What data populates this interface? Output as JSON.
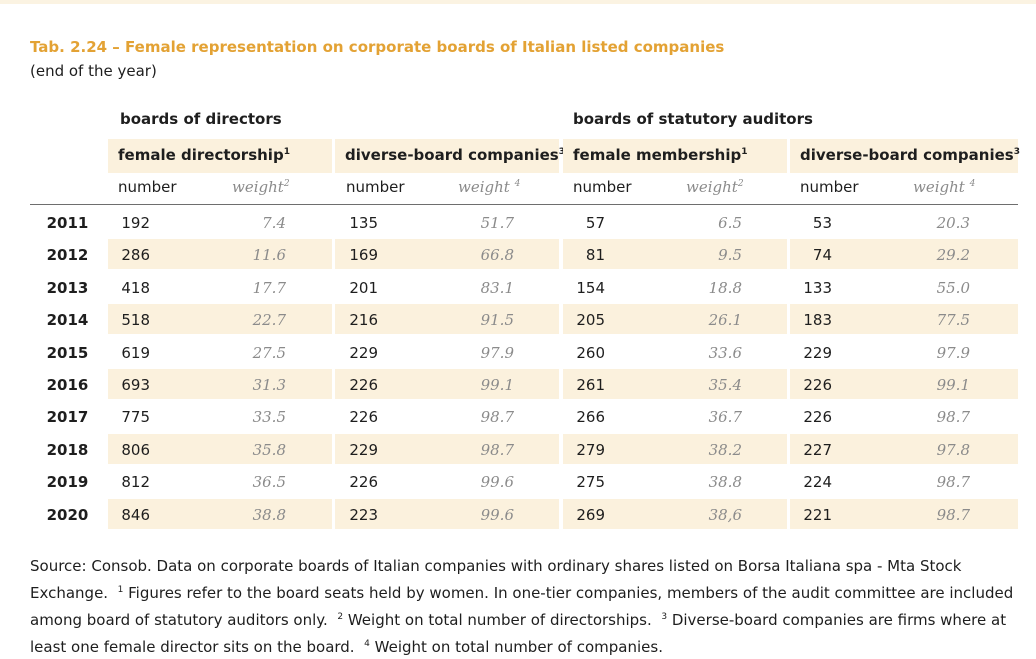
{
  "title": "Tab. 2.24 – Female representation on corporate boards of Italian listed companies",
  "subtitle": "(end of the year)",
  "groups": {
    "directors": "boards of directors",
    "auditors": "boards of statutory auditors"
  },
  "columns": [
    {
      "label": "female directorship",
      "sup": "1"
    },
    {
      "label": "diverse-board companies",
      "sup": "3"
    },
    {
      "label": "female membership",
      "sup": "1"
    },
    {
      "label": "diverse-board companies",
      "sup": "3"
    }
  ],
  "subheaders": [
    {
      "number": "number",
      "weight": "weight",
      "sup": "2"
    },
    {
      "number": "number",
      "weight": "weight ",
      "sup": "4"
    },
    {
      "number": "number",
      "weight": "weight",
      "sup": "2"
    },
    {
      "number": "number",
      "weight": "weight ",
      "sup": "4"
    }
  ],
  "rows": [
    {
      "year": "2011",
      "values": [
        "192",
        "7.4",
        "135",
        "51.7",
        "57",
        "6.5",
        "53",
        "20.3"
      ]
    },
    {
      "year": "2012",
      "values": [
        "286",
        "11.6",
        "169",
        "66.8",
        "81",
        "9.5",
        "74",
        "29.2"
      ]
    },
    {
      "year": "2013",
      "values": [
        "418",
        "17.7",
        "201",
        "83.1",
        "154",
        "18.8",
        "133",
        "55.0"
      ]
    },
    {
      "year": "2014",
      "values": [
        "518",
        "22.7",
        "216",
        "91.5",
        "205",
        "26.1",
        "183",
        "77.5"
      ]
    },
    {
      "year": "2015",
      "values": [
        "619",
        "27.5",
        "229",
        "97.9",
        "260",
        "33.6",
        "229",
        "97.9"
      ]
    },
    {
      "year": "2016",
      "values": [
        "693",
        "31.3",
        "226",
        "99.1",
        "261",
        "35.4",
        "226",
        "99.1"
      ]
    },
    {
      "year": "2017",
      "values": [
        "775",
        "33.5",
        "226",
        "98.7",
        "266",
        "36.7",
        "226",
        "98.7"
      ]
    },
    {
      "year": "2018",
      "values": [
        "806",
        "35.8",
        "229",
        "98.7",
        "279",
        "38.2",
        "227",
        "97.8"
      ]
    },
    {
      "year": "2019",
      "values": [
        "812",
        "36.5",
        "226",
        "99.6",
        "275",
        "38.8",
        "224",
        "98.7"
      ]
    },
    {
      "year": "2020",
      "values": [
        "846",
        "38.8",
        "223",
        "99.6",
        "269",
        "38,6",
        "221",
        "98.7"
      ]
    }
  ],
  "source": {
    "intro": "Source: Consob. Data on corporate boards of Italian companies with ordinary shares listed on Borsa Italiana spa - Mta Stock Exchange.",
    "notes": [
      {
        "sup": "1",
        "text": "Figures refer to the board seats held by women. In one-tier companies, members of the audit committee are included among board of statutory auditors only."
      },
      {
        "sup": "2",
        "text": "Weight on total number of directorships."
      },
      {
        "sup": "3",
        "text": "Diverse-board companies are firms where at least one female director sits on the board."
      },
      {
        "sup": "4",
        "text": "Weight on total number of companies."
      }
    ]
  },
  "colors": {
    "title": "#e3a234",
    "band": "#fbf1dd",
    "weight_text": "#8b8b8b"
  }
}
